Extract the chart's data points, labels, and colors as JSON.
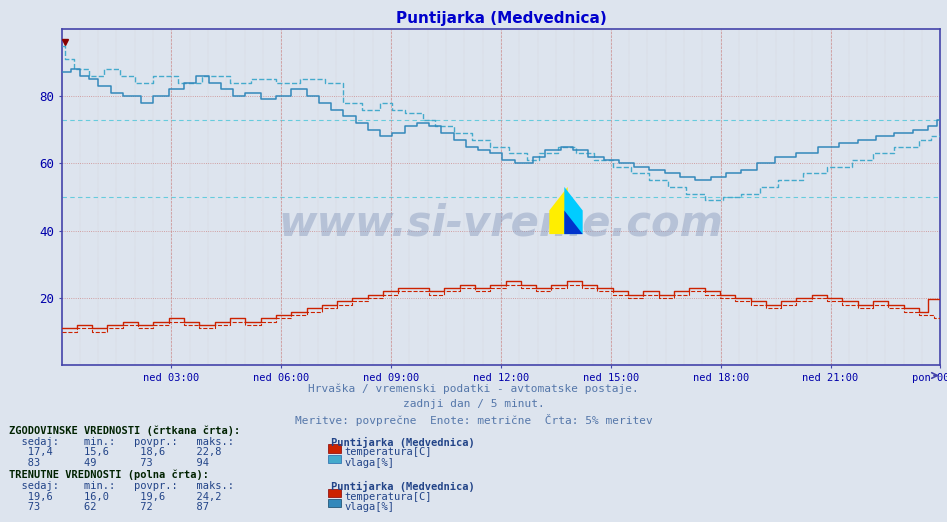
{
  "title": "Puntijarka (Medvednica)",
  "title_color": "#0000cc",
  "bg_color": "#dde4ee",
  "plot_bg_color": "#dde4ee",
  "xlabel_ticks": [
    "ned 03:00",
    "ned 06:00",
    "ned 09:00",
    "ned 12:00",
    "ned 15:00",
    "ned 18:00",
    "ned 21:00",
    "pon 00:00"
  ],
  "ylabel_ticks": [
    20,
    40,
    60,
    80
  ],
  "ymin": 0,
  "ymax": 100,
  "grid_color_h": "#cc9999",
  "grid_color_v_major": "#cc9999",
  "grid_color_v_minor": "#ccbbbb",
  "grid_color_h_cyan": "#66bbdd",
  "watermark": "www.si-vreme.com",
  "subtitle1": "Hrvaška / vremenski podatki - avtomatske postaje.",
  "subtitle2": "zadnji dan / 5 minut.",
  "subtitle3": "Meritve: povprečne  Enote: metrične  Črta: 5% meritev",
  "footer_color": "#5577aa",
  "temp_color": "#cc2200",
  "hum_color_solid": "#3388bb",
  "hum_color_dashed": "#44aacc",
  "n_points": 288,
  "label_color": "#224488",
  "hist_label": "ZGODOVINSKE VREDNOSTI (črtkana črta):",
  "curr_label": "TRENUTNE VREDNOSTI (polna črta):",
  "col_header": "  sedaj:    min.:   povpr.:   maks.:",
  "station_name": "Puntijarka (Medvednica)",
  "hist_temp_row": "   17,4     15,6     18,6     22,8",
  "hist_hum_row": "   83       49       73       94",
  "curr_temp_row": "   19,6     16,0     19,6     24,2",
  "curr_hum_row": "   73       62       72       87",
  "temp_legend": "temperatura[C]",
  "hum_legend": "vlaga[%]",
  "hist_hum_avg": 73,
  "hist_temp_avg": 18.6,
  "curr_hum_avg": 72,
  "curr_temp_avg": 19.6
}
